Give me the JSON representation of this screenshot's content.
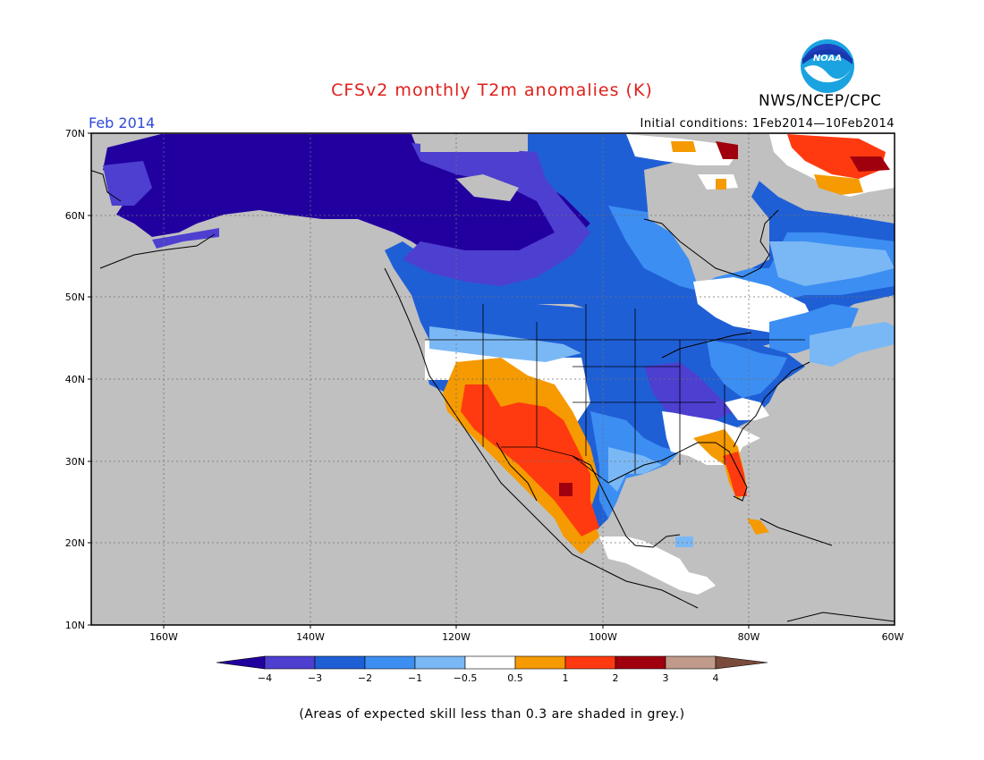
{
  "title": "CFSv2 monthly T2m anomalies (K)",
  "agency": "NWS/NCEP/CPC",
  "logo_text": "NOAA",
  "month_label": "Feb 2014",
  "initial_conditions": "Initial conditions: 1Feb2014—10Feb2014",
  "footnote": "(Areas of expected skill less than 0.3 are shaded in grey.)",
  "map": {
    "lon_range": [
      -170,
      -60
    ],
    "lat_range": [
      10,
      70
    ],
    "lat_ticks": [
      "10N",
      "20N",
      "30N",
      "40N",
      "50N",
      "60N",
      "70N"
    ],
    "lon_ticks": [
      "160W",
      "140W",
      "120W",
      "100W",
      "80W",
      "60W"
    ],
    "background_color": "#c0c0c0",
    "grid": true
  },
  "colorbar": {
    "labels": [
      "−4",
      "−3",
      "−2",
      "−1",
      "−0.5",
      "0.5",
      "1",
      "2",
      "3",
      "4"
    ],
    "colors": [
      "#2200a0",
      "#4d3fd0",
      "#1f5fd6",
      "#3c8ef2",
      "#7ab8f5",
      "#ffffff",
      "#f59a00",
      "#ff3a10",
      "#a0000e",
      "#c09a8a",
      "#7a4a3a"
    ]
  },
  "colors": {
    "very_cold": "#2200a0",
    "cold": "#4d3fd0",
    "blue": "#1f5fd6",
    "mid_blue": "#3c8ef2",
    "light_blue": "#7ab8f5",
    "neutral": "#ffffff",
    "orange": "#f59a00",
    "red": "#ff3a10",
    "dark_red": "#a0000e"
  }
}
